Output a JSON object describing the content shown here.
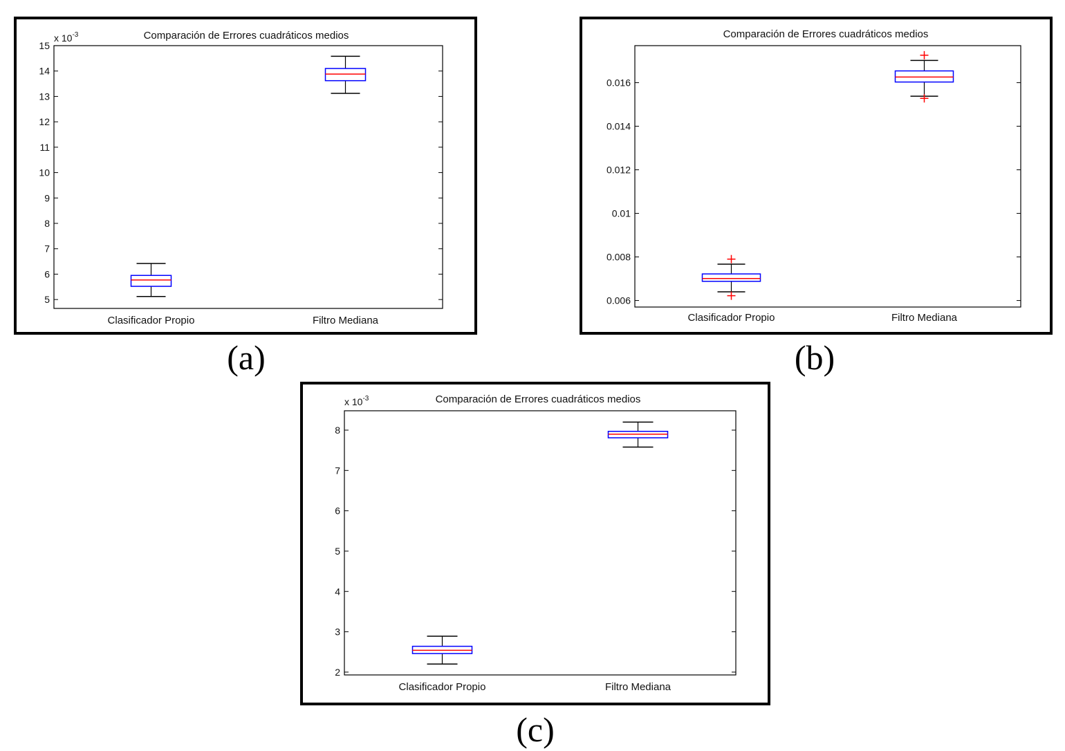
{
  "chart_data": [
    {
      "type": "box",
      "panel_label": "(a)",
      "title": "Comparación de Errores cuadráticos medios",
      "exponent_label": "x 10",
      "exponent_power": "-3",
      "categories": [
        "Clasificador Propio",
        "Filtro Mediana"
      ],
      "ylim": [
        4.65,
        15
      ],
      "yticks": [
        5,
        6,
        7,
        8,
        9,
        10,
        11,
        12,
        13,
        14,
        15
      ],
      "ytick_labels": [
        "5",
        "6",
        "7",
        "8",
        "9",
        "10",
        "11",
        "12",
        "13",
        "14",
        "15"
      ],
      "boxes": [
        {
          "whisker_low": 5.12,
          "q1": 5.52,
          "median": 5.77,
          "q3": 5.95,
          "whisker_high": 6.42,
          "outliers": []
        },
        {
          "whisker_low": 13.12,
          "q1": 13.62,
          "median": 13.88,
          "q3": 14.1,
          "whisker_high": 14.58,
          "outliers": []
        }
      ],
      "colors": {
        "box": "#0000ff",
        "median": "#ff0000",
        "whisker": "#000000",
        "outlier": "#ff0000"
      }
    },
    {
      "type": "box",
      "panel_label": "(b)",
      "title": "Comparación de Errores cuadráticos medios",
      "exponent_label": "",
      "exponent_power": "",
      "categories": [
        "Clasificador Propio",
        "Filtro Mediana"
      ],
      "ylim": [
        0.0057,
        0.0177
      ],
      "yticks": [
        0.006,
        0.008,
        0.01,
        0.012,
        0.014,
        0.016
      ],
      "ytick_labels": [
        "0.006",
        "0.008",
        "0.01",
        "0.012",
        "0.014",
        "0.016"
      ],
      "boxes": [
        {
          "whisker_low": 0.0064,
          "q1": 0.00688,
          "median": 0.00701,
          "q3": 0.00722,
          "whisker_high": 0.00767,
          "outliers": [
            0.00622,
            0.0079
          ]
        },
        {
          "whisker_low": 0.01538,
          "q1": 0.01603,
          "median": 0.01626,
          "q3": 0.01654,
          "whisker_high": 0.01702,
          "outliers": [
            0.01528,
            0.01726
          ]
        }
      ],
      "colors": {
        "box": "#0000ff",
        "median": "#ff0000",
        "whisker": "#000000",
        "outlier": "#ff0000"
      }
    },
    {
      "type": "box",
      "panel_label": "(c)",
      "title": "Comparación de Errores cuadráticos medios",
      "exponent_label": "x 10",
      "exponent_power": "-3",
      "categories": [
        "Clasificador Propio",
        "Filtro Mediana"
      ],
      "ylim": [
        1.93,
        8.48
      ],
      "yticks": [
        2,
        3,
        4,
        5,
        6,
        7,
        8
      ],
      "ytick_labels": [
        "2",
        "3",
        "4",
        "5",
        "6",
        "7",
        "8"
      ],
      "boxes": [
        {
          "whisker_low": 2.2,
          "q1": 2.46,
          "median": 2.54,
          "q3": 2.64,
          "whisker_high": 2.89,
          "outliers": []
        },
        {
          "whisker_low": 7.58,
          "q1": 7.81,
          "median": 7.9,
          "q3": 7.97,
          "whisker_high": 8.2,
          "outliers": []
        }
      ],
      "colors": {
        "box": "#0000ff",
        "median": "#ff0000",
        "whisker": "#000000",
        "outlier": "#ff0000"
      }
    }
  ]
}
